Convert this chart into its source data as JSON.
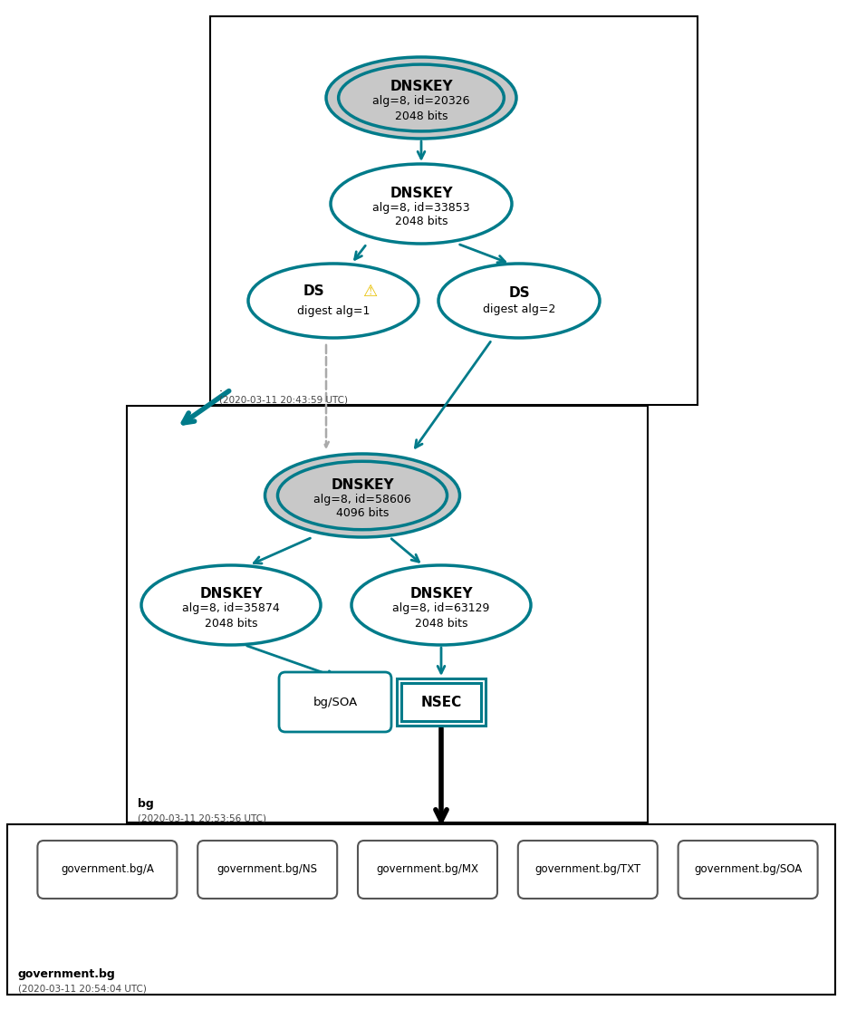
{
  "teal": "#007B8A",
  "gray_fill": "#C8C8C8",
  "white_fill": "#FFFFFF",
  "bg_color": "#FFFFFF",
  "box1_label": ".",
  "box1_time": "(2020-03-11 20:43:59 UTC)",
  "box2_label": "bg",
  "box2_time": "(2020-03-11 20:53:56 UTC)",
  "box3_label": "government.bg",
  "box3_time": "(2020-03-11 20:54:04 UTC)",
  "dnskey1": [
    "DNSKEY",
    "alg=8, id=20326",
    "2048 bits"
  ],
  "dnskey2": [
    "DNSKEY",
    "alg=8, id=33853",
    "2048 bits"
  ],
  "ds1": [
    "DS",
    "digest alg=1"
  ],
  "ds2": [
    "DS",
    "digest alg=2"
  ],
  "dnskey3": [
    "DNSKEY",
    "alg=8, id=58606",
    "4096 bits"
  ],
  "dnskey4": [
    "DNSKEY",
    "alg=8, id=35874",
    "2048 bits"
  ],
  "dnskey5": [
    "DNSKEY",
    "alg=8, id=63129",
    "2048 bits"
  ],
  "soa_label": "bg/SOA",
  "nsec_label": "NSEC",
  "gov_labels": [
    "government.bg/A",
    "government.bg/NS",
    "government.bg/MX",
    "government.bg/TXT",
    "government.bg/SOA"
  ],
  "note_label": "·"
}
